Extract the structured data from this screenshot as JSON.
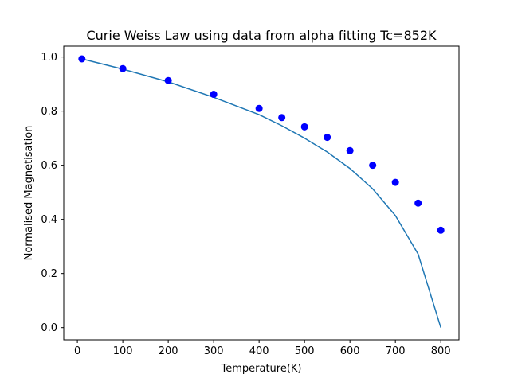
{
  "chart_data": {
    "type": "line",
    "title": "Curie Weiss Law using data from alpha fitting Tc=852K",
    "xlabel": "Temperature(K)",
    "ylabel": "Normalised Magnetisation",
    "xlim": [
      -30,
      840
    ],
    "ylim": [
      -0.045,
      1.04
    ],
    "x_ticks": [
      0,
      100,
      200,
      300,
      400,
      500,
      600,
      700,
      800
    ],
    "y_ticks": [
      0.0,
      0.2,
      0.4,
      0.6,
      0.8,
      1.0
    ],
    "y_tick_labels": [
      "0.0",
      "0.2",
      "0.4",
      "0.6",
      "0.8",
      "1.0"
    ],
    "grid": false,
    "series": [
      {
        "kind": "line",
        "color": "#1f77b4",
        "x": [
          10,
          100,
          200,
          300,
          400,
          450,
          500,
          550,
          600,
          650,
          700,
          750,
          800
        ],
        "y": [
          0.993,
          0.955,
          0.908,
          0.851,
          0.787,
          0.746,
          0.7,
          0.649,
          0.588,
          0.513,
          0.414,
          0.272,
          0.0
        ]
      },
      {
        "kind": "scatter",
        "color": "#0000ff",
        "x": [
          10,
          100,
          200,
          300,
          400,
          450,
          500,
          550,
          600,
          650,
          700,
          750,
          800
        ],
        "y": [
          0.993,
          0.957,
          0.913,
          0.862,
          0.81,
          0.776,
          0.742,
          0.703,
          0.654,
          0.6,
          0.537,
          0.46,
          0.36
        ]
      }
    ]
  }
}
